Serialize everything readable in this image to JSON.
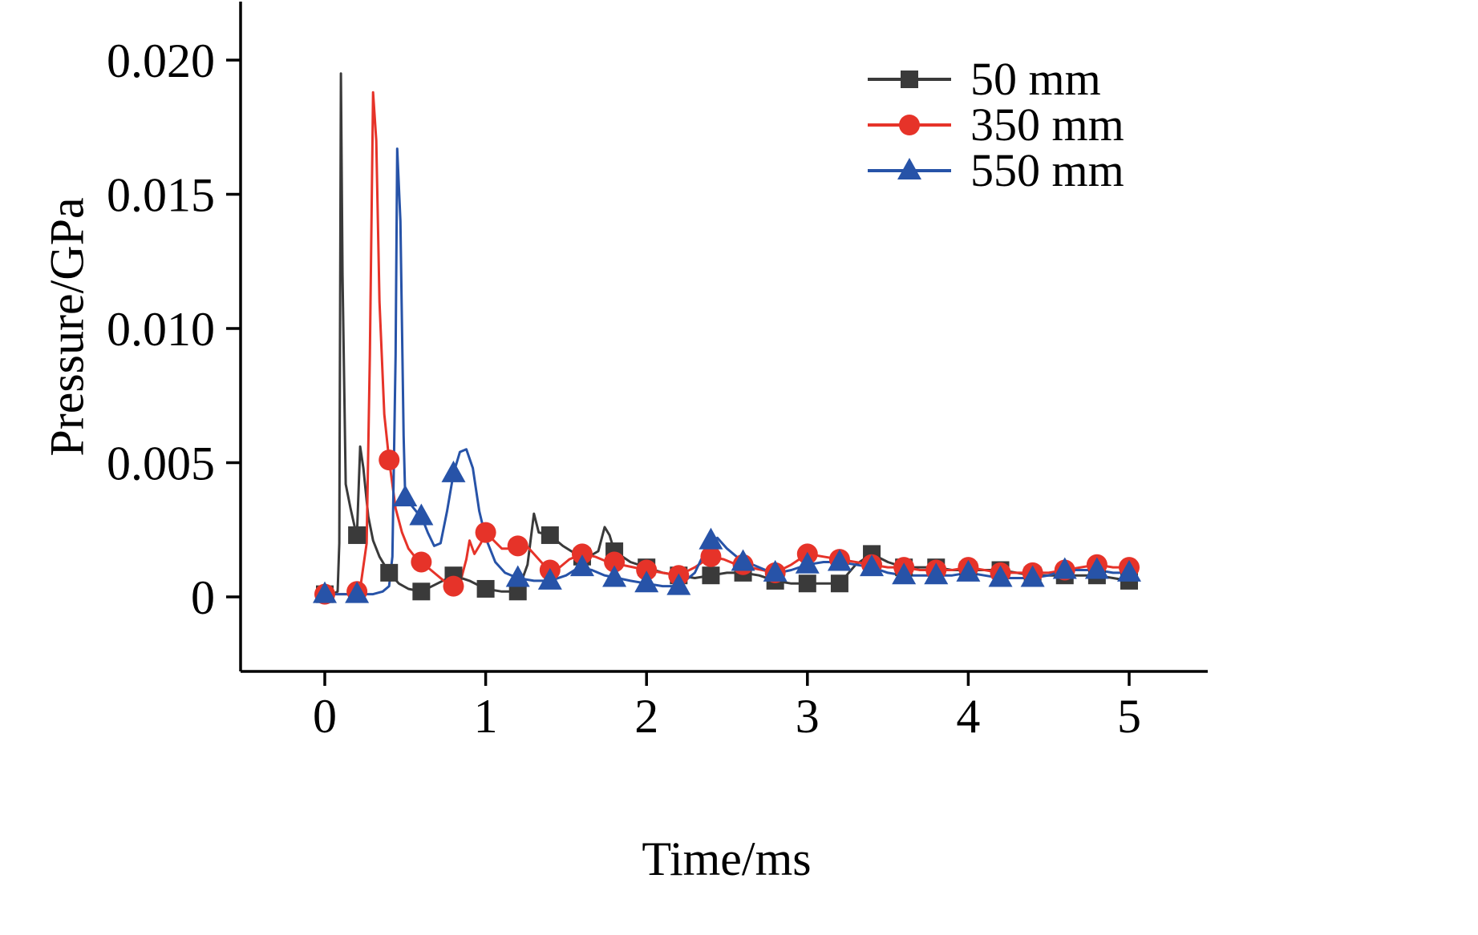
{
  "chart_data": {
    "type": "line",
    "title": "",
    "xlabel": "Time/ms",
    "ylabel": "Pressure/GPa",
    "xlim": [
      -0.5,
      5.5
    ],
    "ylim": [
      -0.0028,
      0.0222
    ],
    "xticks": [
      0,
      1,
      2,
      3,
      4,
      5
    ],
    "xtick_labels": [
      "0",
      "1",
      "2",
      "3",
      "4",
      "5"
    ],
    "yticks": [
      0,
      0.005,
      0.01,
      0.015,
      0.02
    ],
    "ytick_labels": [
      "0",
      "0.005",
      "0.010",
      "0.015",
      "0.020"
    ],
    "grid": false,
    "legend_position": "top-right",
    "series": [
      {
        "name": "50 mm",
        "color": "#3a3a3a",
        "marker": "square",
        "peak": {
          "time": 0.1,
          "pressure": 0.0195
        },
        "line": [
          [
            0,
            0.0001
          ],
          [
            0.05,
            0.0001
          ],
          [
            0.08,
            0.0002
          ],
          [
            0.09,
            0.002
          ],
          [
            0.1,
            0.0195
          ],
          [
            0.11,
            0.012
          ],
          [
            0.13,
            0.0042
          ],
          [
            0.16,
            0.0033
          ],
          [
            0.19,
            0.0025
          ],
          [
            0.2,
            0.0023
          ],
          [
            0.22,
            0.0056
          ],
          [
            0.24,
            0.0048
          ],
          [
            0.27,
            0.003
          ],
          [
            0.3,
            0.0021
          ],
          [
            0.34,
            0.0015
          ],
          [
            0.4,
            0.0009
          ],
          [
            0.46,
            0.0005
          ],
          [
            0.52,
            0.0003
          ],
          [
            0.6,
            0.0002
          ],
          [
            0.7,
            0.0005
          ],
          [
            0.8,
            0.0008
          ],
          [
            0.9,
            0.0006
          ],
          [
            1.0,
            0.0003
          ],
          [
            1.1,
            0.0002
          ],
          [
            1.2,
            0.0002
          ],
          [
            1.26,
            0.0012
          ],
          [
            1.3,
            0.0031
          ],
          [
            1.33,
            0.0024
          ],
          [
            1.4,
            0.0023
          ],
          [
            1.48,
            0.0019
          ],
          [
            1.56,
            0.0016
          ],
          [
            1.64,
            0.0015
          ],
          [
            1.7,
            0.0017
          ],
          [
            1.74,
            0.0026
          ],
          [
            1.77,
            0.0023
          ],
          [
            1.8,
            0.0017
          ],
          [
            1.9,
            0.0013
          ],
          [
            2.0,
            0.0011
          ],
          [
            2.1,
            0.0009
          ],
          [
            2.2,
            0.0008
          ],
          [
            2.3,
            0.0007
          ],
          [
            2.4,
            0.0008
          ],
          [
            2.5,
            0.0009
          ],
          [
            2.6,
            0.0009
          ],
          [
            2.7,
            0.0008
          ],
          [
            2.8,
            0.0006
          ],
          [
            2.9,
            0.0005
          ],
          [
            3.0,
            0.0005
          ],
          [
            3.1,
            0.0005
          ],
          [
            3.2,
            0.0005
          ],
          [
            3.3,
            0.0012
          ],
          [
            3.4,
            0.0016
          ],
          [
            3.5,
            0.0013
          ],
          [
            3.6,
            0.0011
          ],
          [
            3.7,
            0.0011
          ],
          [
            3.8,
            0.0011
          ],
          [
            3.9,
            0.001
          ],
          [
            4.0,
            0.001
          ],
          [
            4.1,
            0.001
          ],
          [
            4.2,
            0.001
          ],
          [
            4.3,
            0.0009
          ],
          [
            4.4,
            0.0008
          ],
          [
            4.5,
            0.0008
          ],
          [
            4.6,
            0.0008
          ],
          [
            4.7,
            0.0008
          ],
          [
            4.8,
            0.0008
          ],
          [
            4.9,
            0.0007
          ],
          [
            5.0,
            0.0006
          ]
        ],
        "markers": [
          [
            0,
            0.0001
          ],
          [
            0.2,
            0.0023
          ],
          [
            0.4,
            0.0009
          ],
          [
            0.6,
            0.0002
          ],
          [
            0.8,
            0.0008
          ],
          [
            1.0,
            0.0003
          ],
          [
            1.2,
            0.0002
          ],
          [
            1.4,
            0.0023
          ],
          [
            1.6,
            0.0015
          ],
          [
            1.8,
            0.0017
          ],
          [
            2.0,
            0.0011
          ],
          [
            2.2,
            0.0008
          ],
          [
            2.4,
            0.0008
          ],
          [
            2.6,
            0.0009
          ],
          [
            2.8,
            0.0006
          ],
          [
            3.0,
            0.0005
          ],
          [
            3.2,
            0.0005
          ],
          [
            3.4,
            0.0016
          ],
          [
            3.6,
            0.0011
          ],
          [
            3.8,
            0.0011
          ],
          [
            4.0,
            0.001
          ],
          [
            4.2,
            0.001
          ],
          [
            4.4,
            0.0008
          ],
          [
            4.6,
            0.0008
          ],
          [
            4.8,
            0.0008
          ],
          [
            5.0,
            0.0006
          ]
        ]
      },
      {
        "name": "350 mm",
        "color": "#e63329",
        "marker": "circle",
        "peak": {
          "time": 0.3,
          "pressure": 0.0188
        },
        "line": [
          [
            0,
            0.0001
          ],
          [
            0.1,
            0.0001
          ],
          [
            0.17,
            0.0001
          ],
          [
            0.22,
            0.0003
          ],
          [
            0.26,
            0.002
          ],
          [
            0.28,
            0.009
          ],
          [
            0.3,
            0.0188
          ],
          [
            0.32,
            0.017
          ],
          [
            0.34,
            0.011
          ],
          [
            0.37,
            0.0068
          ],
          [
            0.4,
            0.0051
          ],
          [
            0.44,
            0.0033
          ],
          [
            0.48,
            0.0024
          ],
          [
            0.52,
            0.0018
          ],
          [
            0.56,
            0.0015
          ],
          [
            0.6,
            0.0013
          ],
          [
            0.68,
            0.0009
          ],
          [
            0.76,
            0.0005
          ],
          [
            0.8,
            0.0004
          ],
          [
            0.84,
            0.0005
          ],
          [
            0.88,
            0.0014
          ],
          [
            0.9,
            0.0021
          ],
          [
            0.93,
            0.0016
          ],
          [
            0.97,
            0.002
          ],
          [
            1.0,
            0.0024
          ],
          [
            1.05,
            0.0021
          ],
          [
            1.1,
            0.0018
          ],
          [
            1.16,
            0.0018
          ],
          [
            1.2,
            0.0019
          ],
          [
            1.24,
            0.002
          ],
          [
            1.3,
            0.0016
          ],
          [
            1.36,
            0.0012
          ],
          [
            1.4,
            0.001
          ],
          [
            1.46,
            0.0011
          ],
          [
            1.52,
            0.0014
          ],
          [
            1.6,
            0.0016
          ],
          [
            1.68,
            0.0015
          ],
          [
            1.76,
            0.0013
          ],
          [
            1.84,
            0.0012
          ],
          [
            1.92,
            0.0011
          ],
          [
            2.0,
            0.001
          ],
          [
            2.1,
            0.0009
          ],
          [
            2.2,
            0.0008
          ],
          [
            2.3,
            0.0011
          ],
          [
            2.4,
            0.0015
          ],
          [
            2.48,
            0.0014
          ],
          [
            2.56,
            0.0012
          ],
          [
            2.64,
            0.0011
          ],
          [
            2.72,
            0.001
          ],
          [
            2.8,
            0.0009
          ],
          [
            2.9,
            0.0012
          ],
          [
            3.0,
            0.0016
          ],
          [
            3.1,
            0.0015
          ],
          [
            3.2,
            0.0014
          ],
          [
            3.3,
            0.0013
          ],
          [
            3.4,
            0.0012
          ],
          [
            3.5,
            0.0011
          ],
          [
            3.6,
            0.0011
          ],
          [
            3.7,
            0.001
          ],
          [
            3.8,
            0.001
          ],
          [
            3.9,
            0.001
          ],
          [
            4.0,
            0.0011
          ],
          [
            4.1,
            0.001
          ],
          [
            4.2,
            0.0009
          ],
          [
            4.3,
            0.0009
          ],
          [
            4.4,
            0.0009
          ],
          [
            4.5,
            0.0009
          ],
          [
            4.6,
            0.001
          ],
          [
            4.7,
            0.0011
          ],
          [
            4.8,
            0.0012
          ],
          [
            4.9,
            0.0011
          ],
          [
            5.0,
            0.0011
          ]
        ],
        "markers": [
          [
            0,
            0.0001
          ],
          [
            0.2,
            0.0002
          ],
          [
            0.4,
            0.0051
          ],
          [
            0.6,
            0.0013
          ],
          [
            0.8,
            0.0004
          ],
          [
            1.0,
            0.0024
          ],
          [
            1.2,
            0.0019
          ],
          [
            1.4,
            0.001
          ],
          [
            1.6,
            0.0016
          ],
          [
            1.8,
            0.0013
          ],
          [
            2.0,
            0.001
          ],
          [
            2.2,
            0.0008
          ],
          [
            2.4,
            0.0015
          ],
          [
            2.6,
            0.0012
          ],
          [
            2.8,
            0.0009
          ],
          [
            3.0,
            0.0016
          ],
          [
            3.2,
            0.0014
          ],
          [
            3.4,
            0.0012
          ],
          [
            3.6,
            0.0011
          ],
          [
            3.8,
            0.001
          ],
          [
            4.0,
            0.0011
          ],
          [
            4.2,
            0.0009
          ],
          [
            4.4,
            0.0009
          ],
          [
            4.6,
            0.001
          ],
          [
            4.8,
            0.0012
          ],
          [
            5.0,
            0.0011
          ]
        ]
      },
      {
        "name": "550 mm",
        "color": "#2753a8",
        "marker": "triangle",
        "peak": {
          "time": 0.45,
          "pressure": 0.0167
        },
        "line": [
          [
            0,
            0.0001
          ],
          [
            0.2,
            0.0001
          ],
          [
            0.3,
            0.0001
          ],
          [
            0.36,
            0.0002
          ],
          [
            0.4,
            0.0004
          ],
          [
            0.42,
            0.0015
          ],
          [
            0.44,
            0.009
          ],
          [
            0.45,
            0.0167
          ],
          [
            0.47,
            0.014
          ],
          [
            0.49,
            0.006
          ],
          [
            0.5,
            0.0037
          ],
          [
            0.54,
            0.0034
          ],
          [
            0.58,
            0.0031
          ],
          [
            0.6,
            0.003
          ],
          [
            0.64,
            0.0024
          ],
          [
            0.68,
            0.0019
          ],
          [
            0.72,
            0.002
          ],
          [
            0.76,
            0.0032
          ],
          [
            0.8,
            0.0046
          ],
          [
            0.84,
            0.0054
          ],
          [
            0.88,
            0.0055
          ],
          [
            0.92,
            0.0048
          ],
          [
            0.96,
            0.0032
          ],
          [
            1.0,
            0.0022
          ],
          [
            1.06,
            0.0013
          ],
          [
            1.12,
            0.0009
          ],
          [
            1.2,
            0.0007
          ],
          [
            1.3,
            0.0006
          ],
          [
            1.4,
            0.0006
          ],
          [
            1.5,
            0.0008
          ],
          [
            1.58,
            0.0011
          ],
          [
            1.66,
            0.001
          ],
          [
            1.74,
            0.0008
          ],
          [
            1.82,
            0.0007
          ],
          [
            1.9,
            0.0006
          ],
          [
            2.0,
            0.0005
          ],
          [
            2.1,
            0.0004
          ],
          [
            2.2,
            0.0004
          ],
          [
            2.3,
            0.0009
          ],
          [
            2.38,
            0.0019
          ],
          [
            2.44,
            0.0022
          ],
          [
            2.5,
            0.0018
          ],
          [
            2.58,
            0.0014
          ],
          [
            2.66,
            0.0012
          ],
          [
            2.74,
            0.001
          ],
          [
            2.82,
            0.0009
          ],
          [
            2.9,
            0.001
          ],
          [
            3.0,
            0.0012
          ],
          [
            3.1,
            0.0013
          ],
          [
            3.2,
            0.0013
          ],
          [
            3.3,
            0.0012
          ],
          [
            3.4,
            0.0011
          ],
          [
            3.5,
            0.0009
          ],
          [
            3.6,
            0.0008
          ],
          [
            3.7,
            0.0008
          ],
          [
            3.8,
            0.0008
          ],
          [
            3.9,
            0.0008
          ],
          [
            4.0,
            0.0009
          ],
          [
            4.1,
            0.0008
          ],
          [
            4.2,
            0.0007
          ],
          [
            4.3,
            0.0007
          ],
          [
            4.4,
            0.0007
          ],
          [
            4.5,
            0.0008
          ],
          [
            4.6,
            0.001
          ],
          [
            4.7,
            0.001
          ],
          [
            4.8,
            0.001
          ],
          [
            4.9,
            0.0009
          ],
          [
            5.0,
            0.0009
          ]
        ],
        "markers": [
          [
            0,
            0.0001
          ],
          [
            0.2,
            0.0001
          ],
          [
            0.5,
            0.0037
          ],
          [
            0.6,
            0.003
          ],
          [
            0.8,
            0.0046
          ],
          [
            1.2,
            0.0007
          ],
          [
            1.4,
            0.0006
          ],
          [
            1.6,
            0.0011
          ],
          [
            1.8,
            0.0007
          ],
          [
            2.0,
            0.0005
          ],
          [
            2.2,
            0.0004
          ],
          [
            2.4,
            0.0021
          ],
          [
            2.6,
            0.0013
          ],
          [
            2.8,
            0.0009
          ],
          [
            3.0,
            0.0012
          ],
          [
            3.2,
            0.0013
          ],
          [
            3.4,
            0.0011
          ],
          [
            3.6,
            0.0008
          ],
          [
            3.8,
            0.0008
          ],
          [
            4.0,
            0.0009
          ],
          [
            4.2,
            0.0007
          ],
          [
            4.4,
            0.0007
          ],
          [
            4.6,
            0.001
          ],
          [
            4.8,
            0.001
          ],
          [
            5.0,
            0.0009
          ]
        ]
      }
    ]
  }
}
